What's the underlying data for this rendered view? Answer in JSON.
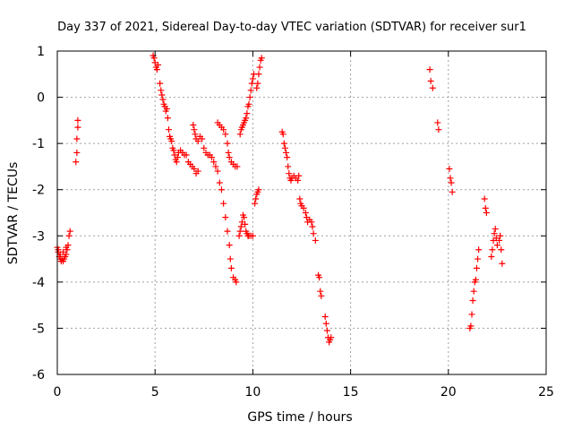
{
  "chart_data": {
    "type": "scatter",
    "title": "Day 337 of 2021, Sidereal Day-to-day VTEC variation (SDTVAR) for receiver sur1",
    "xlabel": "GPS time / hours",
    "ylabel": "SDTVAR / TECUs",
    "xlim": [
      0,
      25
    ],
    "ylim": [
      -6,
      1
    ],
    "xticks": [
      0,
      5,
      10,
      15,
      20,
      25
    ],
    "yticks": [
      -6,
      -5,
      -4,
      -3,
      -2,
      -1,
      0,
      1
    ],
    "grid": true,
    "marker": "+",
    "color": "#ff0000",
    "series": [
      {
        "name": "SDTVAR",
        "points": [
          [
            0.0,
            -3.25
          ],
          [
            0.05,
            -3.35
          ],
          [
            0.1,
            -3.45
          ],
          [
            0.15,
            -3.5
          ],
          [
            0.2,
            -3.55
          ],
          [
            0.25,
            -3.5
          ],
          [
            0.3,
            -3.55
          ],
          [
            0.35,
            -3.5
          ],
          [
            0.4,
            -3.45
          ],
          [
            0.45,
            -3.4
          ],
          [
            0.5,
            -3.3
          ],
          [
            0.55,
            -3.2
          ],
          [
            0.6,
            -3.0
          ],
          [
            0.65,
            -2.9
          ],
          [
            0.05,
            -3.3
          ],
          [
            0.15,
            -3.4
          ],
          [
            0.3,
            -3.35
          ],
          [
            0.45,
            -3.25
          ],
          [
            0.95,
            -1.4
          ],
          [
            1.0,
            -1.2
          ],
          [
            1.0,
            -0.9
          ],
          [
            1.05,
            -0.65
          ],
          [
            1.05,
            -0.5
          ],
          [
            4.9,
            0.9
          ],
          [
            4.95,
            0.85
          ],
          [
            5.0,
            0.75
          ],
          [
            5.05,
            0.65
          ],
          [
            5.1,
            0.6
          ],
          [
            5.15,
            0.7
          ],
          [
            5.25,
            0.3
          ],
          [
            5.3,
            0.15
          ],
          [
            5.35,
            0.05
          ],
          [
            5.4,
            -0.05
          ],
          [
            5.45,
            -0.15
          ],
          [
            5.5,
            -0.2
          ],
          [
            5.55,
            -0.3
          ],
          [
            5.6,
            -0.25
          ],
          [
            5.65,
            -0.45
          ],
          [
            5.7,
            -0.7
          ],
          [
            5.75,
            -0.85
          ],
          [
            5.8,
            -0.9
          ],
          [
            5.85,
            -0.95
          ],
          [
            5.9,
            -1.1
          ],
          [
            5.95,
            -1.15
          ],
          [
            6.0,
            -1.25
          ],
          [
            6.05,
            -1.35
          ],
          [
            6.1,
            -1.4
          ],
          [
            6.15,
            -1.3
          ],
          [
            6.2,
            -1.2
          ],
          [
            6.3,
            -1.15
          ],
          [
            6.4,
            -1.2
          ],
          [
            6.5,
            -1.25
          ],
          [
            6.6,
            -1.25
          ],
          [
            6.7,
            -1.4
          ],
          [
            6.8,
            -1.45
          ],
          [
            6.9,
            -1.5
          ],
          [
            7.0,
            -1.55
          ],
          [
            7.1,
            -1.65
          ],
          [
            7.2,
            -1.6
          ],
          [
            6.95,
            -0.6
          ],
          [
            7.0,
            -0.7
          ],
          [
            7.05,
            -0.8
          ],
          [
            7.1,
            -0.9
          ],
          [
            7.2,
            -0.95
          ],
          [
            7.3,
            -0.85
          ],
          [
            7.4,
            -0.9
          ],
          [
            7.5,
            -1.1
          ],
          [
            7.6,
            -1.2
          ],
          [
            7.7,
            -1.25
          ],
          [
            7.8,
            -1.25
          ],
          [
            7.9,
            -1.3
          ],
          [
            8.0,
            -1.4
          ],
          [
            8.1,
            -1.5
          ],
          [
            8.2,
            -1.6
          ],
          [
            8.3,
            -1.85
          ],
          [
            8.4,
            -2.0
          ],
          [
            8.5,
            -2.3
          ],
          [
            8.6,
            -2.6
          ],
          [
            8.7,
            -2.9
          ],
          [
            8.8,
            -3.2
          ],
          [
            8.85,
            -3.5
          ],
          [
            8.9,
            -3.7
          ],
          [
            9.0,
            -3.9
          ],
          [
            9.1,
            -3.95
          ],
          [
            9.15,
            -4.0
          ],
          [
            8.2,
            -0.55
          ],
          [
            8.3,
            -0.6
          ],
          [
            8.4,
            -0.65
          ],
          [
            8.5,
            -0.7
          ],
          [
            8.6,
            -0.8
          ],
          [
            8.7,
            -1.0
          ],
          [
            8.75,
            -1.2
          ],
          [
            8.8,
            -1.3
          ],
          [
            8.9,
            -1.4
          ],
          [
            9.0,
            -1.45
          ],
          [
            9.1,
            -1.5
          ],
          [
            9.2,
            -1.5
          ],
          [
            9.35,
            -0.8
          ],
          [
            9.4,
            -0.7
          ],
          [
            9.45,
            -0.65
          ],
          [
            9.5,
            -0.6
          ],
          [
            9.55,
            -0.55
          ],
          [
            9.6,
            -0.5
          ],
          [
            9.65,
            -0.45
          ],
          [
            9.7,
            -0.35
          ],
          [
            9.75,
            -0.2
          ],
          [
            9.8,
            -0.15
          ],
          [
            9.85,
            0.0
          ],
          [
            9.9,
            0.15
          ],
          [
            9.95,
            0.3
          ],
          [
            10.0,
            0.4
          ],
          [
            10.05,
            0.5
          ],
          [
            9.3,
            -3.0
          ],
          [
            9.35,
            -2.9
          ],
          [
            9.4,
            -2.8
          ],
          [
            9.45,
            -2.7
          ],
          [
            9.5,
            -2.55
          ],
          [
            9.55,
            -2.6
          ],
          [
            9.6,
            -2.75
          ],
          [
            9.65,
            -2.9
          ],
          [
            9.7,
            -2.95
          ],
          [
            9.75,
            -3.0
          ],
          [
            9.8,
            -3.0
          ],
          [
            9.9,
            -3.0
          ],
          [
            10.0,
            -3.0
          ],
          [
            10.1,
            -2.3
          ],
          [
            10.15,
            -2.2
          ],
          [
            10.2,
            -2.1
          ],
          [
            10.25,
            -2.05
          ],
          [
            10.3,
            -2.0
          ],
          [
            10.2,
            0.2
          ],
          [
            10.25,
            0.3
          ],
          [
            10.3,
            0.5
          ],
          [
            10.35,
            0.65
          ],
          [
            10.4,
            0.8
          ],
          [
            10.45,
            0.85
          ],
          [
            11.5,
            -0.75
          ],
          [
            11.55,
            -0.8
          ],
          [
            11.6,
            -1.0
          ],
          [
            11.65,
            -1.1
          ],
          [
            11.7,
            -1.2
          ],
          [
            11.75,
            -1.3
          ],
          [
            11.8,
            -1.5
          ],
          [
            11.85,
            -1.65
          ],
          [
            11.9,
            -1.75
          ],
          [
            11.95,
            -1.8
          ],
          [
            12.0,
            -1.75
          ],
          [
            12.1,
            -1.7
          ],
          [
            12.2,
            -1.75
          ],
          [
            12.3,
            -1.8
          ],
          [
            12.35,
            -1.7
          ],
          [
            12.4,
            -2.2
          ],
          [
            12.45,
            -2.3
          ],
          [
            12.5,
            -2.35
          ],
          [
            12.6,
            -2.4
          ],
          [
            12.7,
            -2.5
          ],
          [
            12.75,
            -2.6
          ],
          [
            12.8,
            -2.7
          ],
          [
            12.9,
            -2.65
          ],
          [
            13.0,
            -2.7
          ],
          [
            13.05,
            -2.8
          ],
          [
            13.1,
            -2.95
          ],
          [
            13.2,
            -3.1
          ],
          [
            13.35,
            -3.85
          ],
          [
            13.4,
            -3.9
          ],
          [
            13.45,
            -4.2
          ],
          [
            13.5,
            -4.3
          ],
          [
            13.7,
            -4.75
          ],
          [
            13.75,
            -4.9
          ],
          [
            13.8,
            -5.05
          ],
          [
            13.85,
            -5.2
          ],
          [
            13.9,
            -5.3
          ],
          [
            13.95,
            -5.25
          ],
          [
            14.0,
            -5.2
          ],
          [
            19.05,
            0.6
          ],
          [
            19.1,
            0.35
          ],
          [
            19.2,
            0.2
          ],
          [
            19.45,
            -0.55
          ],
          [
            19.5,
            -0.7
          ],
          [
            20.05,
            -1.55
          ],
          [
            20.1,
            -1.75
          ],
          [
            20.15,
            -1.85
          ],
          [
            20.2,
            -2.05
          ],
          [
            21.1,
            -5.0
          ],
          [
            21.15,
            -4.95
          ],
          [
            21.2,
            -4.7
          ],
          [
            21.25,
            -4.4
          ],
          [
            21.3,
            -4.2
          ],
          [
            21.35,
            -4.0
          ],
          [
            21.4,
            -3.95
          ],
          [
            21.45,
            -3.7
          ],
          [
            21.5,
            -3.5
          ],
          [
            21.55,
            -3.3
          ],
          [
            21.85,
            -2.2
          ],
          [
            21.9,
            -2.4
          ],
          [
            21.95,
            -2.5
          ],
          [
            22.2,
            -3.45
          ],
          [
            22.25,
            -3.3
          ],
          [
            22.3,
            -3.1
          ],
          [
            22.35,
            -2.95
          ],
          [
            22.4,
            -2.85
          ],
          [
            22.45,
            -3.05
          ],
          [
            22.5,
            -3.2
          ],
          [
            22.6,
            -3.1
          ],
          [
            22.7,
            -3.3
          ],
          [
            22.75,
            -3.6
          ],
          [
            22.65,
            -3.0
          ]
        ]
      }
    ]
  }
}
